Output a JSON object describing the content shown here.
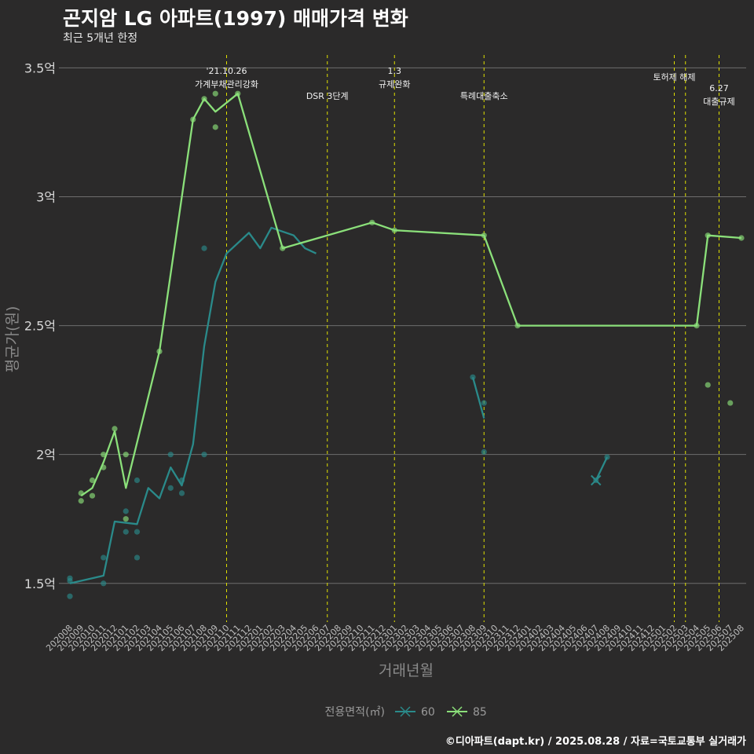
{
  "title": "곤지암 LG 아파트(1997) 매매가격 변화",
  "subtitle": "최근 5개년 한정",
  "caption": "©디아파트(dapt.kr) / 2025.08.28 / 자료=국토교통부 실거래가",
  "colors": {
    "background": "#2b2a2a",
    "grid": "#6e6e6e",
    "event_line": "#e0e000",
    "series_60": "#2a8a8a",
    "series_85": "#8be07a"
  },
  "chart_data": {
    "type": "line",
    "title": "곤지암 LG 아파트(1997) 매매가격 변화",
    "subtitle": "최근 5개년 한정",
    "xlabel": "거래년월",
    "ylabel": "평균가(원)",
    "ylim": [
      1.35,
      3.55
    ],
    "y_ticks": [
      {
        "value": 1.5,
        "label": "1.5억"
      },
      {
        "value": 2.0,
        "label": "2억"
      },
      {
        "value": 2.5,
        "label": "2.5억"
      },
      {
        "value": 3.0,
        "label": "3억"
      },
      {
        "value": 3.5,
        "label": "3.5억"
      }
    ],
    "x_start": "202008",
    "x_end": "202508",
    "x_ticks": [
      "202008",
      "202009",
      "202010",
      "202011",
      "202012",
      "202101",
      "202102",
      "202103",
      "202104",
      "202105",
      "202106",
      "202107",
      "202108",
      "202109",
      "202110",
      "202111",
      "202112",
      "202201",
      "202202",
      "202203",
      "202204",
      "202205",
      "202206",
      "202207",
      "202208",
      "202209",
      "202210",
      "202211",
      "202212",
      "202301",
      "202302",
      "202303",
      "202304",
      "202305",
      "202306",
      "202307",
      "202308",
      "202309",
      "202310",
      "202311",
      "202312",
      "202401",
      "202402",
      "202403",
      "202404",
      "202405",
      "202406",
      "202407",
      "202408",
      "202409",
      "202410",
      "202411",
      "202412",
      "202501",
      "202502",
      "202503",
      "202504",
      "202505",
      "202506",
      "202507",
      "202508"
    ],
    "legend_title": "전용면적(㎡)",
    "series": [
      {
        "name": "60",
        "color": "#2a8a8a",
        "line_segments": [
          [
            [
              "202008",
              1.5
            ],
            [
              "202011",
              1.53
            ],
            [
              "202012",
              1.74
            ],
            [
              "202102",
              1.73
            ],
            [
              "202103",
              1.87
            ],
            [
              "202104",
              1.83
            ],
            [
              "202105",
              1.95
            ],
            [
              "202106",
              1.88
            ],
            [
              "202107",
              2.04
            ],
            [
              "202108",
              2.42
            ],
            [
              "202109",
              2.67
            ],
            [
              "202110",
              2.78
            ],
            [
              "202112",
              2.86
            ],
            [
              "202201",
              2.8
            ],
            [
              "202202",
              2.88
            ],
            [
              "202204",
              2.85
            ],
            [
              "202205",
              2.8
            ],
            [
              "202206",
              2.78
            ]
          ],
          [
            [
              "202308",
              2.3
            ],
            [
              "202309",
              2.14
            ]
          ],
          [
            [
              "202407",
              1.9
            ],
            [
              "202408",
              1.99
            ]
          ]
        ],
        "points": [
          [
            "202008",
            1.52
          ],
          [
            "202008",
            1.51
          ],
          [
            "202008",
            1.45
          ],
          [
            "202011",
            1.6
          ],
          [
            "202011",
            1.5
          ],
          [
            "202101",
            1.78
          ],
          [
            "202101",
            1.7
          ],
          [
            "202102",
            1.9
          ],
          [
            "202102",
            1.7
          ],
          [
            "202102",
            1.6
          ],
          [
            "202105",
            2.0
          ],
          [
            "202105",
            1.87
          ],
          [
            "202106",
            1.9
          ],
          [
            "202106",
            1.85
          ],
          [
            "202108",
            2.8
          ],
          [
            "202108",
            2.0
          ],
          [
            "202308",
            2.3
          ],
          [
            "202309",
            2.2
          ],
          [
            "202309",
            2.01
          ],
          [
            "202407",
            1.9
          ],
          [
            "202408",
            1.99
          ]
        ]
      },
      {
        "name": "85",
        "color": "#8be07a",
        "line_segments": [
          [
            [
              "202009",
              1.84
            ],
            [
              "202010",
              1.87
            ],
            [
              "202011",
              1.97
            ],
            [
              "202012",
              2.09
            ],
            [
              "202101",
              1.87
            ],
            [
              "202104",
              2.4
            ],
            [
              "202107",
              3.3
            ],
            [
              "202108",
              3.38
            ],
            [
              "202109",
              3.33
            ],
            [
              "202111",
              3.4
            ],
            [
              "202203",
              2.8
            ],
            [
              "202211",
              2.9
            ],
            [
              "202301",
              2.87
            ],
            [
              "202309",
              2.85
            ],
            [
              "202312",
              2.5
            ],
            [
              "202504",
              2.5
            ],
            [
              "202505",
              2.85
            ],
            [
              "202508",
              2.84
            ]
          ]
        ],
        "points": [
          [
            "202009",
            1.85
          ],
          [
            "202009",
            1.82
          ],
          [
            "202010",
            1.9
          ],
          [
            "202010",
            1.84
          ],
          [
            "202011",
            2.0
          ],
          [
            "202011",
            1.95
          ],
          [
            "202012",
            2.1
          ],
          [
            "202101",
            2.0
          ],
          [
            "202101",
            1.75
          ],
          [
            "202104",
            2.4
          ],
          [
            "202107",
            3.3
          ],
          [
            "202108",
            3.38
          ],
          [
            "202109",
            3.4
          ],
          [
            "202109",
            3.27
          ],
          [
            "202111",
            3.4
          ],
          [
            "202203",
            2.8
          ],
          [
            "202211",
            2.9
          ],
          [
            "202301",
            2.87
          ],
          [
            "202309",
            2.85
          ],
          [
            "202312",
            2.5
          ],
          [
            "202504",
            2.5
          ],
          [
            "202505",
            2.85
          ],
          [
            "202508",
            2.84
          ],
          [
            "202505",
            2.27
          ],
          [
            "202507",
            2.2
          ]
        ]
      }
    ],
    "events": [
      {
        "x": "202110",
        "lines": [
          "'21.10.26",
          "가계부채관리강화"
        ]
      },
      {
        "x": "202207",
        "lines": [
          "DSR 3단계"
        ]
      },
      {
        "x": "202301",
        "lines": [
          "1.3",
          "규제완화"
        ]
      },
      {
        "x": "202309",
        "lines": [
          "특례대출축소"
        ]
      },
      {
        "x": "202502",
        "lines": [
          "토허제 해제"
        ]
      },
      {
        "x": "202503",
        "lines": []
      },
      {
        "x": "202506",
        "lines": [
          "6.27",
          "대출규제"
        ]
      }
    ]
  }
}
